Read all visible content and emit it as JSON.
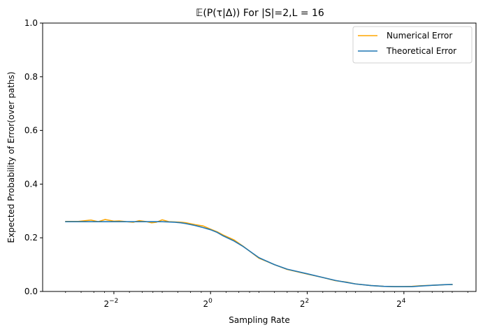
{
  "chart_data": {
    "type": "line",
    "title": "𝔼(P(τ|Δ)) For |S|=2,L = 16",
    "xlabel": "Sampling Rate",
    "ylabel": "Expected Probability of Error(over paths)",
    "x_scale": "log2",
    "xlim": [
      0.09,
      45
    ],
    "ylim": [
      0,
      1
    ],
    "x_ticks": [
      {
        "value": 0.25,
        "base": "2",
        "exp": "−2"
      },
      {
        "value": 1,
        "base": "2",
        "exp": "0"
      },
      {
        "value": 4,
        "base": "2",
        "exp": "2"
      },
      {
        "value": 16,
        "base": "2",
        "exp": "4"
      }
    ],
    "y_ticks": [
      "0.0",
      "0.2",
      "0.4",
      "0.6",
      "0.8",
      "1.0"
    ],
    "legend_position": "top-right",
    "grid": false,
    "colors": {
      "numerical": "#ffa500",
      "theoretical": "#1f77b4"
    },
    "series": [
      {
        "name": "Numerical Error",
        "color": "#ffa500",
        "x": [
          0.125,
          0.15,
          0.18,
          0.2,
          0.22,
          0.25,
          0.27,
          0.3,
          0.33,
          0.36,
          0.4,
          0.43,
          0.46,
          0.5,
          0.55,
          0.6,
          0.65,
          0.7,
          0.8,
          0.9,
          1.0,
          1.1,
          1.2,
          1.4,
          1.6,
          2.0,
          2.5,
          3.0,
          4.0,
          5.0,
          6.0,
          7.0,
          8.0,
          10.0,
          12.0,
          14.0,
          16.0,
          18.0,
          20.0,
          24.0,
          28.0,
          32.0
        ],
        "y": [
          0.261,
          0.261,
          0.266,
          0.26,
          0.268,
          0.262,
          0.263,
          0.26,
          0.258,
          0.264,
          0.26,
          0.256,
          0.258,
          0.267,
          0.26,
          0.259,
          0.258,
          0.256,
          0.249,
          0.244,
          0.232,
          0.222,
          0.21,
          0.192,
          0.168,
          0.124,
          0.1,
          0.082,
          0.065,
          0.052,
          0.04,
          0.035,
          0.028,
          0.022,
          0.019,
          0.018,
          0.018,
          0.019,
          0.021,
          0.023,
          0.025,
          0.026
        ]
      },
      {
        "name": "Theoretical Error",
        "color": "#1f77b4",
        "x": [
          0.125,
          0.15,
          0.18,
          0.2,
          0.22,
          0.25,
          0.27,
          0.3,
          0.33,
          0.36,
          0.4,
          0.43,
          0.46,
          0.5,
          0.55,
          0.6,
          0.65,
          0.7,
          0.8,
          0.9,
          1.0,
          1.1,
          1.2,
          1.4,
          1.6,
          2.0,
          2.5,
          3.0,
          4.0,
          5.0,
          6.0,
          7.0,
          8.0,
          10.0,
          12.0,
          14.0,
          16.0,
          18.0,
          20.0,
          24.0,
          28.0,
          32.0
        ],
        "y": [
          0.26,
          0.26,
          0.26,
          0.26,
          0.26,
          0.26,
          0.26,
          0.26,
          0.26,
          0.26,
          0.26,
          0.26,
          0.26,
          0.26,
          0.259,
          0.258,
          0.256,
          0.253,
          0.246,
          0.238,
          0.23,
          0.22,
          0.207,
          0.188,
          0.167,
          0.126,
          0.1,
          0.083,
          0.066,
          0.052,
          0.041,
          0.034,
          0.028,
          0.022,
          0.019,
          0.018,
          0.018,
          0.018,
          0.02,
          0.023,
          0.025,
          0.026
        ]
      }
    ]
  }
}
